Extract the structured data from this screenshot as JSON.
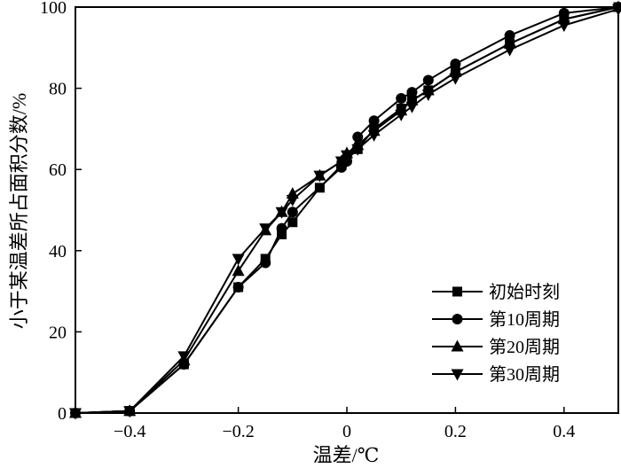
{
  "chart_data": {
    "type": "line",
    "title": "",
    "xlabel": "温差/℃",
    "ylabel": "小于某温差所占面积分数/%",
    "xlim": [
      -0.5,
      0.5
    ],
    "ylim": [
      0,
      100
    ],
    "xticks": [
      -0.4,
      -0.2,
      0,
      0.2,
      0.4
    ],
    "xtick_labels": [
      "−0.4",
      "−0.2",
      "0",
      "0.2",
      "0.4"
    ],
    "yticks": [
      0,
      20,
      40,
      60,
      80,
      100
    ],
    "ytick_labels": [
      "0",
      "20",
      "40",
      "60",
      "80",
      "100"
    ],
    "grid": false,
    "legend_position": "bottom-right",
    "series": [
      {
        "name": "初始时刻",
        "marker": "square",
        "x": [
          -0.5,
          -0.4,
          -0.3,
          -0.2,
          -0.15,
          -0.12,
          -0.1,
          -0.05,
          -0.01,
          0,
          0.02,
          0.05,
          0.1,
          0.12,
          0.15,
          0.2,
          0.3,
          0.4,
          0.5
        ],
        "y": [
          0,
          0.5,
          12,
          31,
          38,
          44,
          47,
          55.5,
          61,
          62.5,
          65,
          70,
          75,
          77,
          79.5,
          84,
          91,
          97,
          100
        ]
      },
      {
        "name": "第10周期",
        "marker": "circle",
        "x": [
          -0.5,
          -0.4,
          -0.3,
          -0.2,
          -0.15,
          -0.12,
          -0.1,
          -0.01,
          0,
          0.02,
          0.05,
          0.1,
          0.12,
          0.15,
          0.2,
          0.3,
          0.4,
          0.5
        ],
        "y": [
          0,
          0.5,
          12,
          31,
          37,
          45.5,
          49.5,
          60.5,
          62,
          68,
          72,
          77.5,
          79,
          82,
          86,
          93,
          98.5,
          100
        ]
      },
      {
        "name": "第20周期",
        "marker": "triangle-up",
        "x": [
          -0.5,
          -0.4,
          -0.3,
          -0.2,
          -0.15,
          -0.12,
          -0.1,
          -0.05,
          -0.01,
          0,
          0.02,
          0.05,
          0.1,
          0.12,
          0.15,
          0.2,
          0.3,
          0.4,
          0.5
        ],
        "y": [
          0,
          0.5,
          13,
          35,
          45,
          49.5,
          54,
          58.5,
          62,
          64,
          66,
          69.5,
          74.5,
          77,
          79.5,
          84,
          91,
          97,
          100
        ]
      },
      {
        "name": "第30周期",
        "marker": "triangle-down",
        "x": [
          -0.5,
          -0.4,
          -0.3,
          -0.2,
          -0.15,
          -0.12,
          -0.1,
          -0.05,
          -0.01,
          0,
          0.02,
          0.05,
          0.1,
          0.12,
          0.15,
          0.2,
          0.3,
          0.4,
          0.5
        ],
        "y": [
          0,
          0.5,
          14,
          38,
          45.5,
          49.5,
          52.5,
          58.5,
          62,
          63.5,
          65,
          68.5,
          73.5,
          75.5,
          78.5,
          82.5,
          89.5,
          95.5,
          99.5
        ]
      }
    ]
  }
}
